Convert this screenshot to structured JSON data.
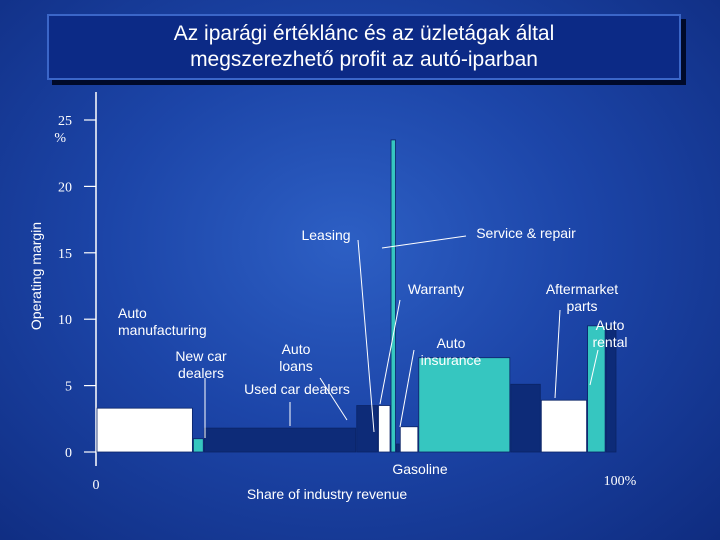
{
  "title": {
    "line1": "Az iparági értéklánc és az üzletágak által",
    "line2": "megszerezhető profit az autó-iparban"
  },
  "chart_data": {
    "type": "bar",
    "subtype": "variable-width (marimekko)",
    "xlabel": "Share of industry revenue",
    "ylabel": "Operating margin",
    "ylim": [
      0,
      25
    ],
    "y_ticks": [
      "0",
      "5",
      "10",
      "15",
      "20",
      "25\n%"
    ],
    "x_tick_labels": [
      "0",
      "100%"
    ],
    "grid": false,
    "colors": {
      "white": "#ffffff",
      "teal": "#36c6c0",
      "navy": "#0d2b78"
    },
    "series": [
      {
        "segments": [
          {
            "value": 3.3,
            "share": 17.7,
            "color": "#ffffff"
          },
          {
            "value": 1.0,
            "share": 2.0,
            "color": "#36c6c0"
          },
          {
            "value": 1.8,
            "share": 28.0,
            "color": "#0d2b78"
          },
          {
            "value": 3.5,
            "share": 4.0,
            "color": "#0d2b78"
          },
          {
            "value": 3.5,
            "share": 2.3,
            "color": "#ffffff"
          },
          {
            "value": 23.5,
            "share": 1.0,
            "color": "#36c6c0"
          },
          {
            "value": 0.6,
            "share": 0.7,
            "color": "#0d2b78"
          },
          {
            "value": 1.9,
            "share": 3.4,
            "color": "#ffffff"
          },
          {
            "value": 7.1,
            "share": 16.9,
            "color": "#36c6c0"
          },
          {
            "value": 5.1,
            "share": 5.6,
            "color": "#0d2b78"
          },
          {
            "value": 3.9,
            "share": 8.5,
            "color": "#ffffff"
          },
          {
            "value": 9.5,
            "share": 3.4,
            "color": "#36c6c0"
          },
          {
            "value": 9.5,
            "share": 2.0,
            "color": "#0d2b78"
          }
        ]
      }
    ],
    "annotations": [
      {
        "lines": [
          "Auto",
          "manufacturing"
        ],
        "segment": 0
      },
      {
        "lines": [
          "New car",
          "dealers"
        ],
        "segment": 1
      },
      {
        "lines": [
          "Auto",
          "loans"
        ],
        "segment": 3
      },
      {
        "lines": [
          "Used car dealers"
        ],
        "segment": 2
      },
      {
        "lines": [
          "Leasing"
        ],
        "segment": 4
      },
      {
        "lines": [
          "Service & repair"
        ],
        "segment": 5
      },
      {
        "lines": [
          "Warranty"
        ],
        "segment": 7
      },
      {
        "lines": [
          "Auto",
          "insurance"
        ],
        "segment": 7
      },
      {
        "lines": [
          "Gasoline"
        ],
        "segment": 8
      },
      {
        "lines": [
          "Aftermarket",
          "parts"
        ],
        "segment": 10
      },
      {
        "lines": [
          "Auto",
          "rental"
        ],
        "segment": 11
      }
    ]
  }
}
